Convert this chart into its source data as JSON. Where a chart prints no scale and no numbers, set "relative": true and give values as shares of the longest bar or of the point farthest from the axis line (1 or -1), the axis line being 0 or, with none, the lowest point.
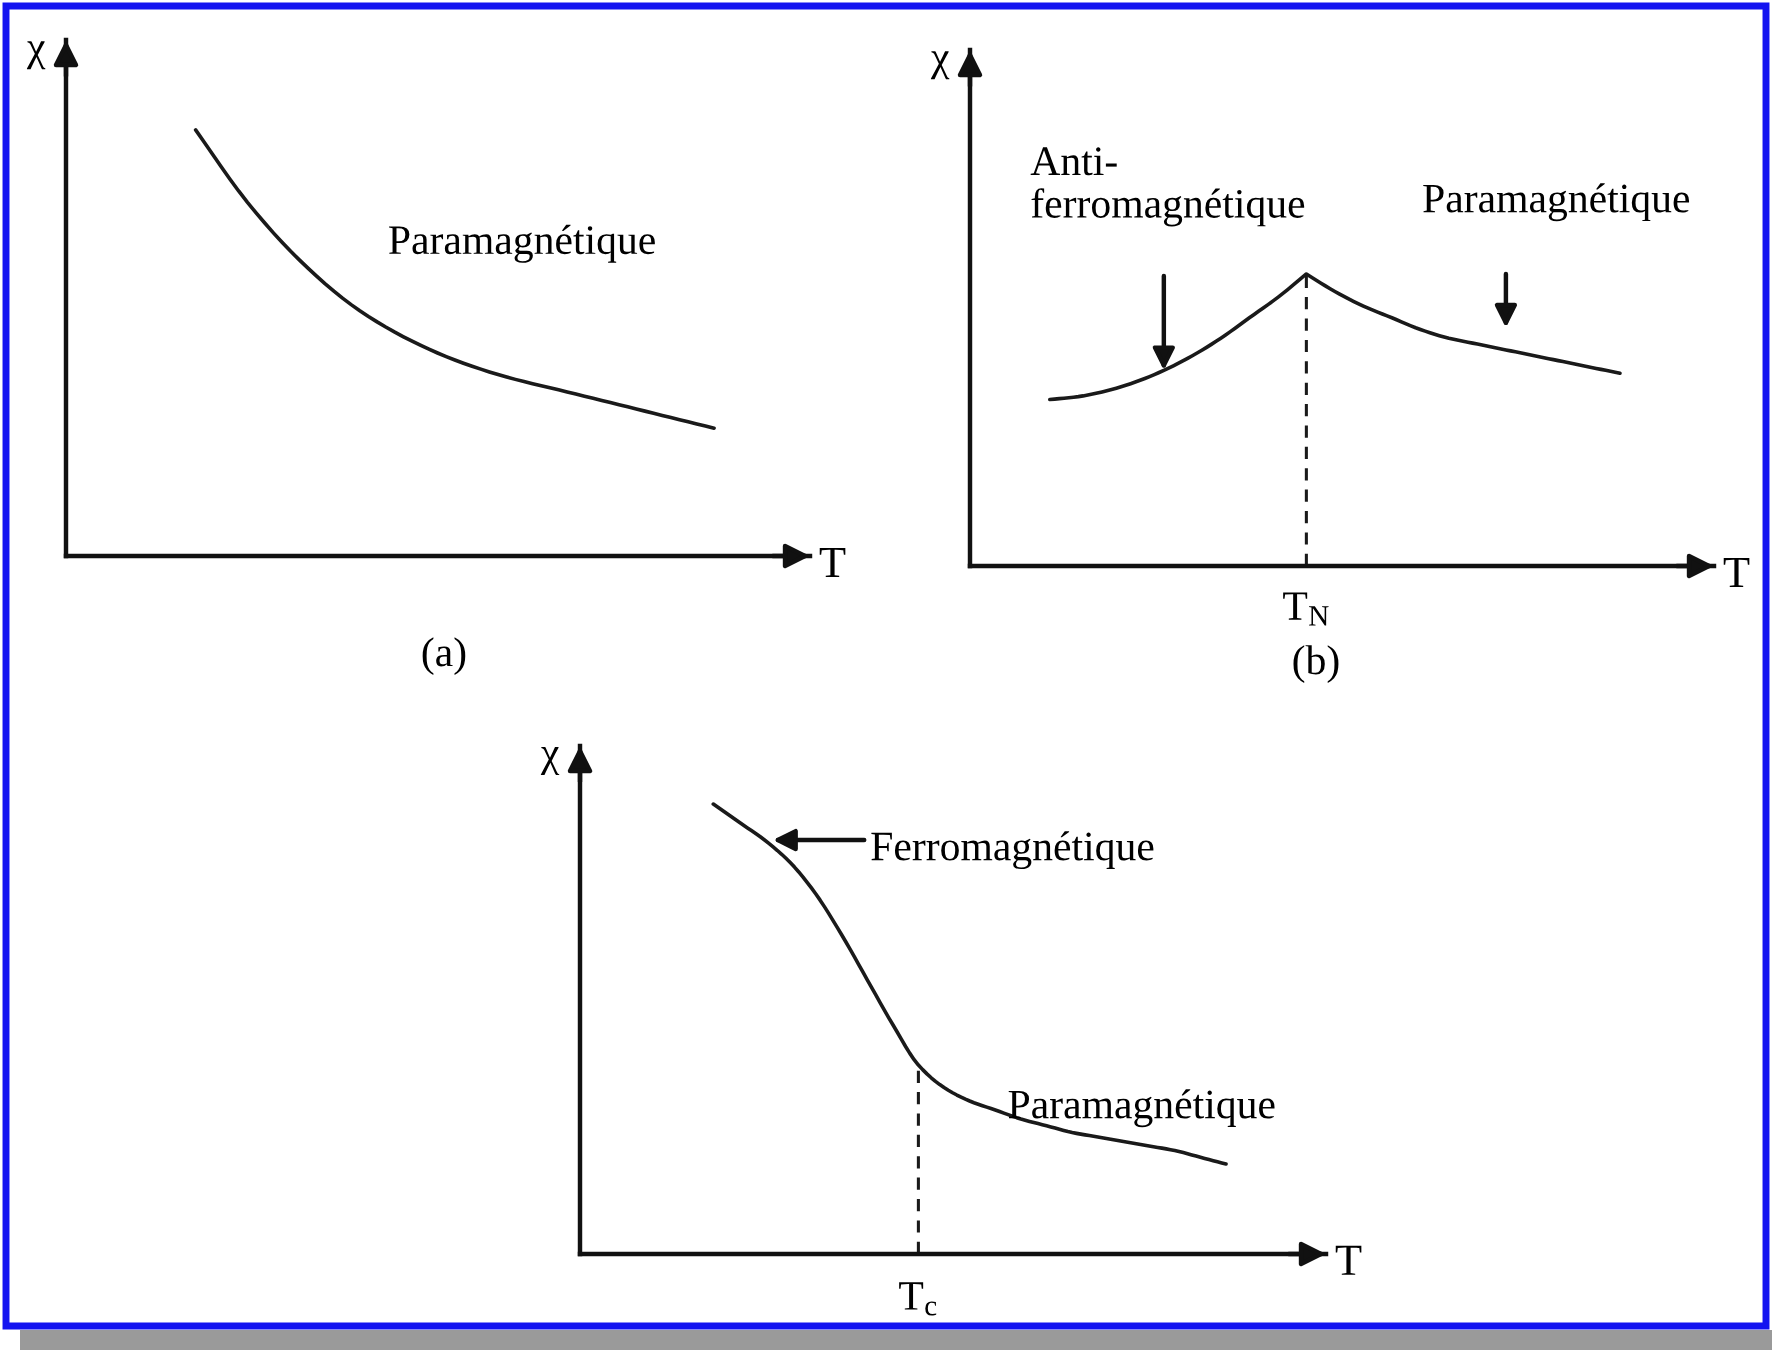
{
  "chart_data": [
    {
      "type": "line",
      "relative": true,
      "xlabel": "T",
      "ylabel": "χ",
      "categories": [
        null,
        null,
        null,
        null,
        null,
        null,
        null,
        null,
        null,
        null,
        null
      ],
      "series": [
        {
          "color": "#1a1a1a",
          "values": [
            1,
            0.83,
            0.695,
            0.59,
            0.515,
            0.46,
            0.42,
            0.39,
            0.36,
            0.33,
            0.3
          ]
        }
      ],
      "annotations": [
        "Paramagnétique",
        "(a)"
      ]
    },
    {
      "type": "line",
      "relative": true,
      "xlabel": "T",
      "ylabel": "χ",
      "categories": [
        null,
        null,
        null,
        null,
        null,
        null,
        null,
        null,
        null,
        null,
        null,
        null,
        null,
        null,
        null,
        null,
        null,
        null,
        null,
        null,
        null
      ],
      "series": [
        {
          "color": "#1a1a1a",
          "values": [
            0.57,
            0.58,
            0.6,
            0.63,
            0.67,
            0.72,
            0.78,
            0.85,
            0.92,
            1,
            0.94,
            0.89,
            0.85,
            0.81,
            0.78,
            0.76,
            0.74,
            0.72,
            0.7,
            0.68,
            0.66
          ]
        }
      ],
      "annotations": [
        "Anti-\nferromagnétique",
        "Paramagnétique",
        "T$_{N}$",
        "(b)"
      ]
    },
    {
      "type": "line",
      "relative": true,
      "xlabel": "T",
      "ylabel": "χ",
      "categories": [
        null,
        null,
        null,
        null,
        null,
        null,
        null,
        null,
        null,
        null,
        null,
        null,
        null,
        null,
        null,
        null,
        null,
        null,
        null,
        null,
        null
      ],
      "series": [
        {
          "color": "#1a1a1a",
          "values": [
            1,
            0.96,
            0.92,
            0.87,
            0.8,
            0.71,
            0.61,
            0.51,
            0.42,
            0.37,
            0.34,
            0.32,
            0.3,
            0.285,
            0.27,
            0.26,
            0.25,
            0.24,
            0.23,
            0.215,
            0.2
          ]
        }
      ],
      "annotations": [
        "Ferromagnétique",
        "Paramagnétique",
        "T$_{c}$"
      ]
    }
  ]
}
